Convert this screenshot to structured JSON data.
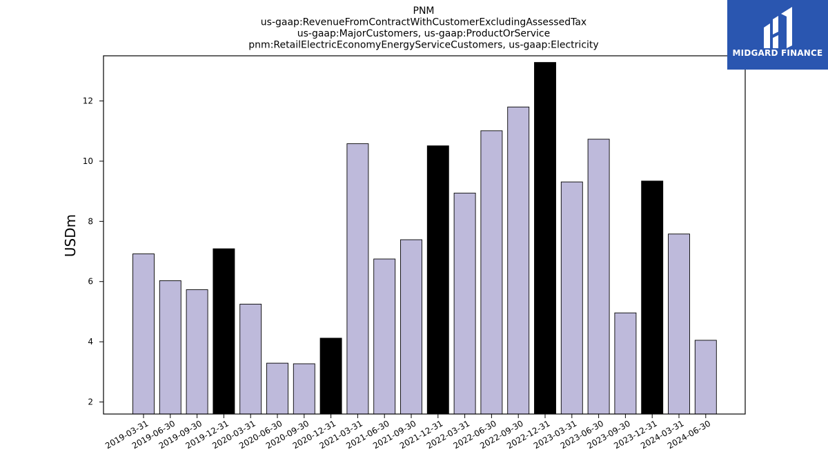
{
  "logo": {
    "text": "MIDGARD FINANCE",
    "background_color": "#2a56b0"
  },
  "chart_data": {
    "type": "bar",
    "title_lines": [
      "PNM",
      "us-gaap:RevenueFromContractWithCustomerExcludingAssessedTax",
      "us-gaap:MajorCustomers, us-gaap:ProductOrService",
      "pnm:RetailElectricEconomyEnergyServiceCustomers, us-gaap:Electricity"
    ],
    "xlabel": "",
    "ylabel": "USDm",
    "ylim": [
      1.6,
      13.5
    ],
    "yticks": [
      2,
      4,
      6,
      8,
      10,
      12
    ],
    "grid": false,
    "categories": [
      "2019-03-31",
      "2019-06-30",
      "2019-09-30",
      "2019-12-31",
      "2020-03-31",
      "2020-06-30",
      "2020-09-30",
      "2020-12-31",
      "2021-03-31",
      "2021-06-30",
      "2021-09-30",
      "2021-12-31",
      "2022-03-31",
      "2022-06-30",
      "2022-09-30",
      "2022-12-31",
      "2023-03-31",
      "2023-06-30",
      "2023-09-30",
      "2023-12-31",
      "2024-03-31",
      "2024-06-30"
    ],
    "values": [
      6.92,
      6.03,
      5.73,
      7.09,
      5.25,
      3.29,
      3.27,
      4.12,
      10.58,
      6.75,
      7.39,
      10.51,
      8.94,
      11.01,
      11.8,
      13.28,
      9.31,
      10.73,
      4.96,
      9.34,
      7.58,
      4.05
    ],
    "colors": {
      "quarter": "#bebadb",
      "year_end": "#000000",
      "edge": "#000000"
    },
    "highlight_categories": [
      "2019-12-31",
      "2020-12-31",
      "2021-12-31",
      "2022-12-31",
      "2023-12-31"
    ]
  }
}
